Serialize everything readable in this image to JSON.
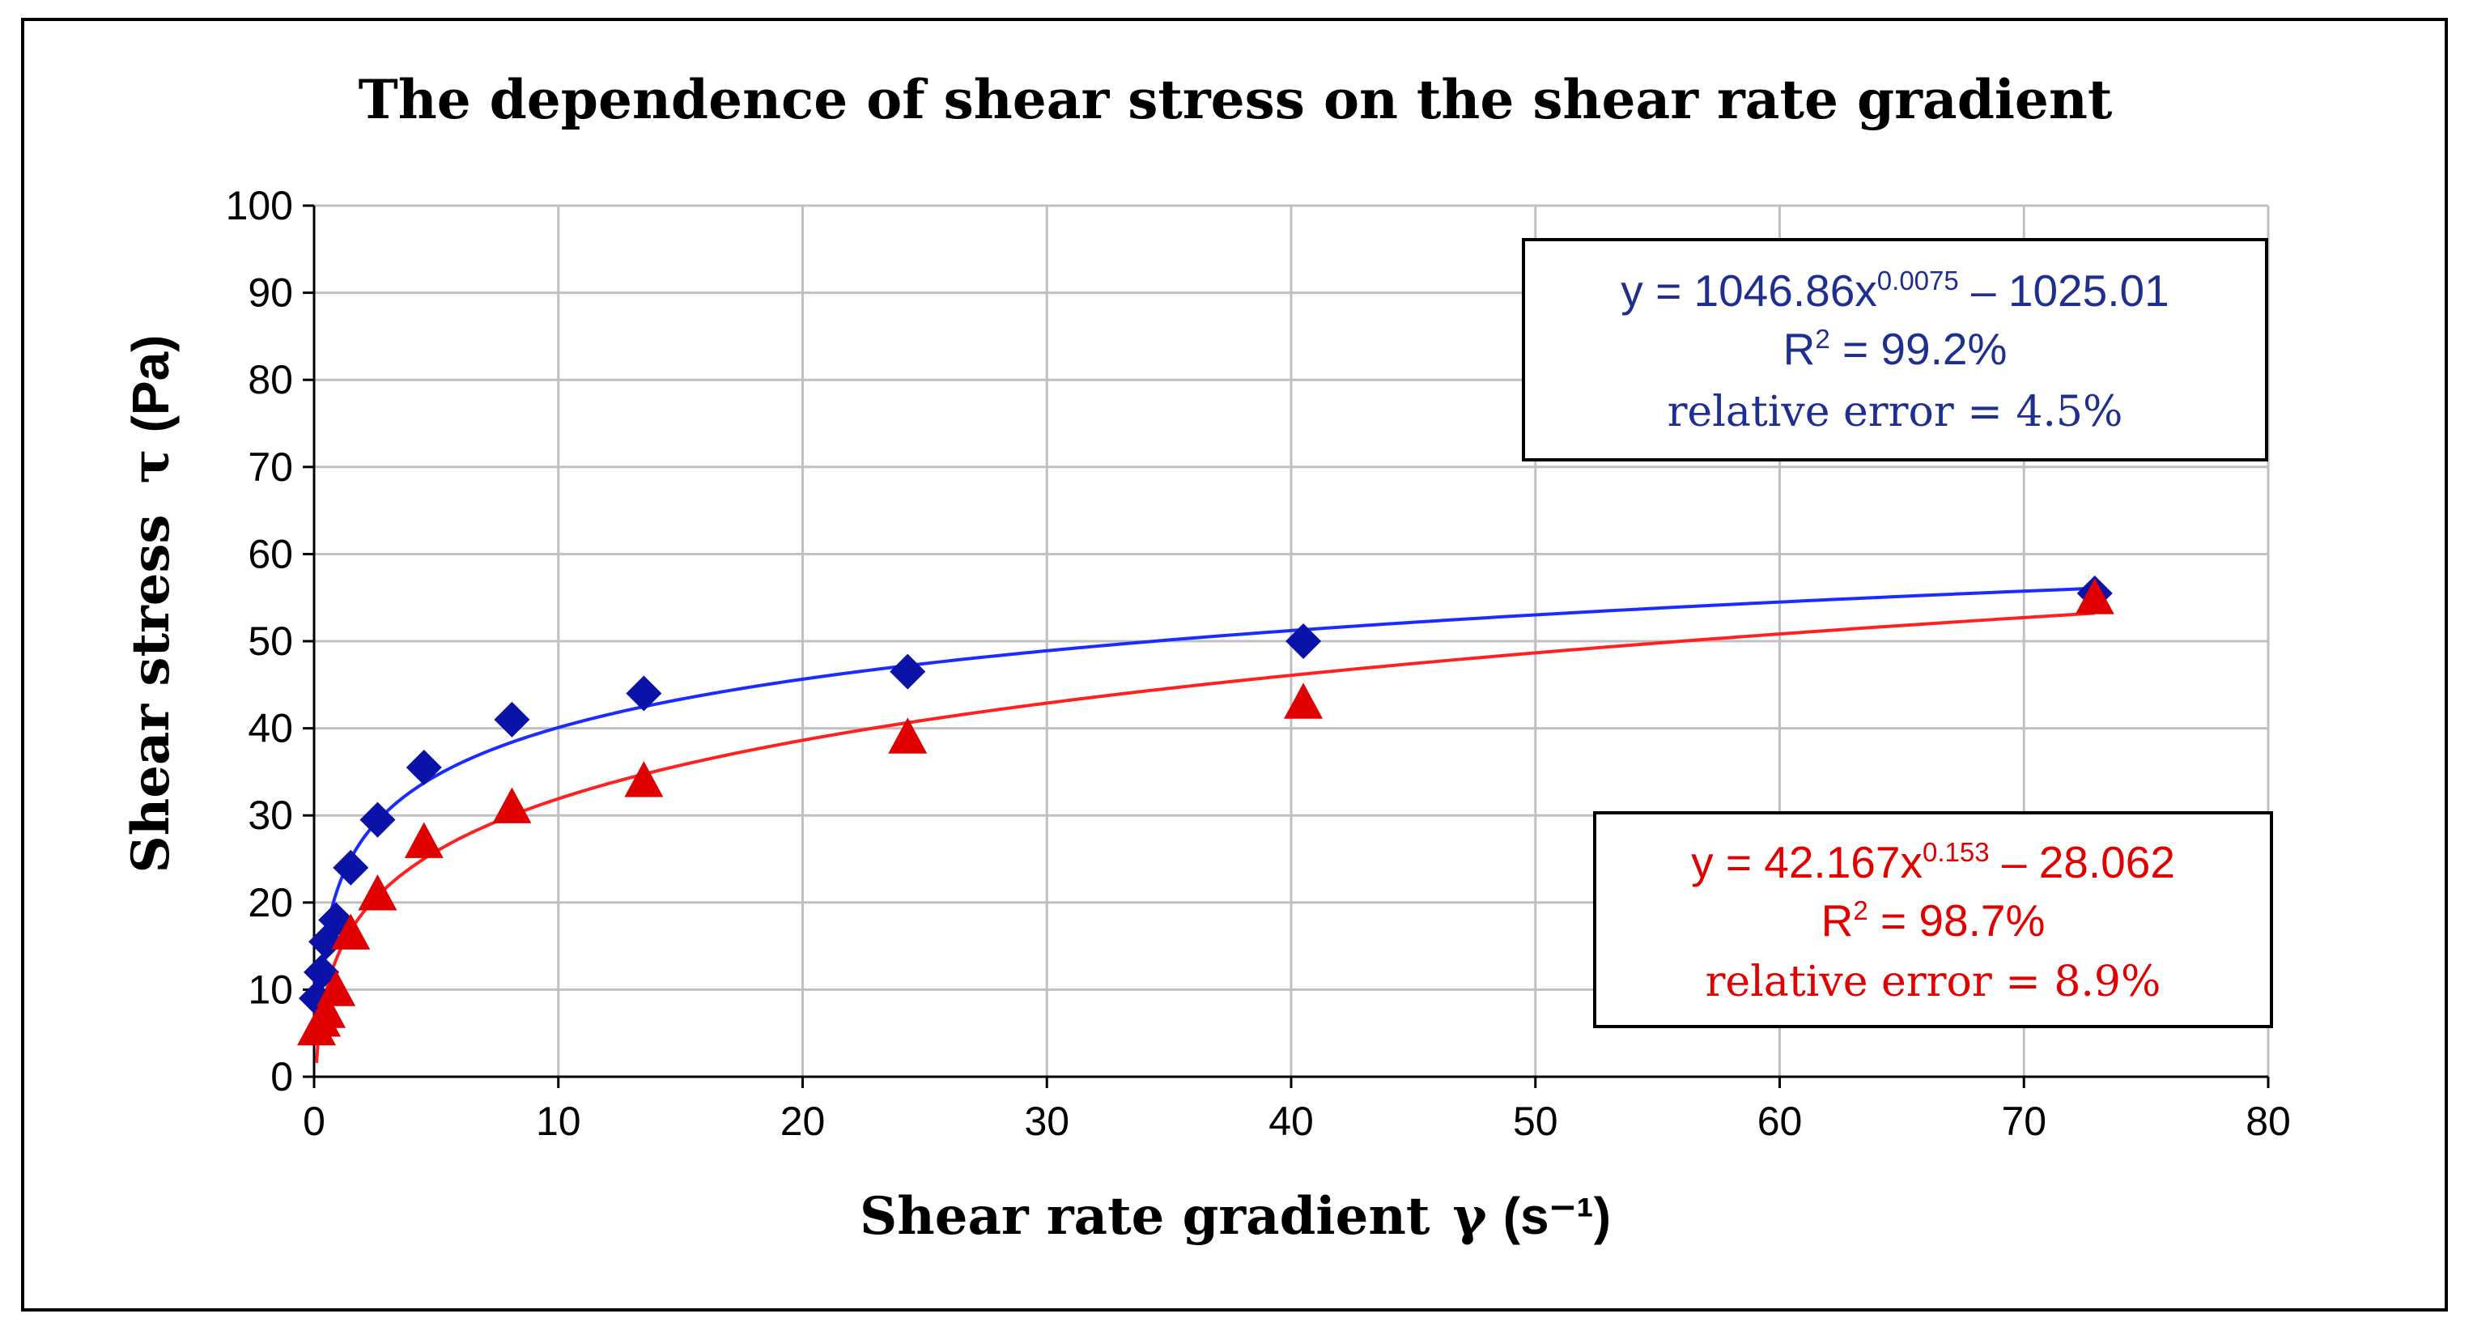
{
  "chart_data": {
    "type": "scatter",
    "title": "The dependence of shear stress on the shear rate gradient",
    "xlabel_text": "Shear rate gradient",
    "xlabel_symbol": "γ",
    "xlabel_unit": "(s⁻¹)",
    "ylabel_text": "Shear stress",
    "ylabel_symbol": "τ",
    "ylabel_unit": "(Pa)",
    "xlim": [
      0,
      80
    ],
    "ylim": [
      0,
      100
    ],
    "xticks": [
      0,
      10,
      20,
      30,
      40,
      50,
      60,
      70,
      80
    ],
    "yticks": [
      0,
      10,
      20,
      30,
      40,
      50,
      60,
      70,
      80,
      90,
      100
    ],
    "grid": true,
    "series": [
      {
        "name": "blue",
        "marker": "diamond",
        "color": "#0a12a8",
        "line_color": "#1a2cff",
        "x": [
          0.1,
          0.3,
          0.5,
          0.9,
          1.5,
          2.6,
          4.5,
          8.1,
          13.5,
          24.3,
          40.5,
          72.9
        ],
        "y": [
          9,
          12,
          15.5,
          18,
          24,
          29.5,
          35.5,
          41,
          44,
          46.5,
          50,
          55.5
        ],
        "fit": {
          "a": 1046.86,
          "b": 0.0075,
          "c": -1025.01
        },
        "equation_prefix": "y = 1046.86x",
        "equation_exp": "0.0075",
        "equation_suffix": " – 1025.01",
        "r2_prefix": "R",
        "r2_sup": "2",
        "r2_suffix": " = 99.2%",
        "rel_error": "relative error = 4.5%"
      },
      {
        "name": "red",
        "marker": "triangle",
        "color": "#e00000",
        "line_color": "#ff2020",
        "x": [
          0.1,
          0.3,
          0.5,
          0.9,
          1.5,
          2.6,
          4.5,
          8.1,
          13.5,
          24.3,
          40.5,
          72.9
        ],
        "y": [
          5.5,
          6.5,
          7.5,
          10,
          16.5,
          21,
          27,
          31,
          34,
          39,
          43,
          55
        ],
        "fit": {
          "a": 42.167,
          "b": 0.153,
          "c": -28.062
        },
        "equation_prefix": "y = 42.167x",
        "equation_exp": "0.153",
        "equation_suffix": " – 28.062",
        "r2_prefix": "R",
        "r2_sup": "2",
        "r2_suffix": " = 98.7%",
        "rel_error": "relative error = 8.9%"
      }
    ]
  }
}
